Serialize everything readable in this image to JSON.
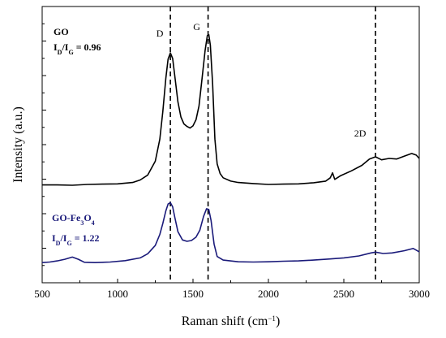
{
  "chart_data": {
    "type": "line",
    "xlabel": "Raman shift (cm",
    "xlabel_sup": "−1",
    "xlabel_end": ")",
    "ylabel": "Intensity (a.u.)",
    "xlim": [
      500,
      3000
    ],
    "ylim": [
      0,
      1
    ],
    "y_tick_labels": false,
    "x_ticks": [
      "500",
      "1000",
      "1500",
      "2000",
      "2500",
      "3000"
    ],
    "grid": false,
    "peak_lines": [
      {
        "label": "D",
        "x": 1350
      },
      {
        "label": "G",
        "x": 1600
      },
      {
        "label": "2D",
        "x": 2710
      }
    ],
    "series": [
      {
        "name": "GO",
        "ratio_label": "I",
        "ratio_sub_d": "D",
        "ratio_mid": "/I",
        "ratio_sub_g": "G",
        "ratio_value": " = 0.96",
        "color": "#000000",
        "points": [
          [
            500,
            0.354
          ],
          [
            600,
            0.354
          ],
          [
            700,
            0.353
          ],
          [
            800,
            0.356
          ],
          [
            900,
            0.357
          ],
          [
            1000,
            0.358
          ],
          [
            1100,
            0.363
          ],
          [
            1150,
            0.372
          ],
          [
            1200,
            0.39
          ],
          [
            1250,
            0.44
          ],
          [
            1280,
            0.52
          ],
          [
            1300,
            0.62
          ],
          [
            1320,
            0.74
          ],
          [
            1335,
            0.81
          ],
          [
            1350,
            0.832
          ],
          [
            1365,
            0.812
          ],
          [
            1380,
            0.745
          ],
          [
            1400,
            0.655
          ],
          [
            1420,
            0.6
          ],
          [
            1440,
            0.575
          ],
          [
            1460,
            0.566
          ],
          [
            1480,
            0.56
          ],
          [
            1500,
            0.568
          ],
          [
            1520,
            0.59
          ],
          [
            1540,
            0.64
          ],
          [
            1560,
            0.74
          ],
          [
            1580,
            0.84
          ],
          [
            1595,
            0.895
          ],
          [
            1605,
            0.898
          ],
          [
            1615,
            0.86
          ],
          [
            1630,
            0.72
          ],
          [
            1645,
            0.52
          ],
          [
            1660,
            0.43
          ],
          [
            1680,
            0.395
          ],
          [
            1700,
            0.38
          ],
          [
            1750,
            0.368
          ],
          [
            1800,
            0.363
          ],
          [
            1900,
            0.359
          ],
          [
            2000,
            0.356
          ],
          [
            2100,
            0.357
          ],
          [
            2200,
            0.358
          ],
          [
            2300,
            0.362
          ],
          [
            2380,
            0.368
          ],
          [
            2410,
            0.38
          ],
          [
            2425,
            0.398
          ],
          [
            2440,
            0.374
          ],
          [
            2480,
            0.388
          ],
          [
            2550,
            0.405
          ],
          [
            2620,
            0.425
          ],
          [
            2670,
            0.448
          ],
          [
            2710,
            0.456
          ],
          [
            2750,
            0.445
          ],
          [
            2800,
            0.45
          ],
          [
            2850,
            0.448
          ],
          [
            2900,
            0.458
          ],
          [
            2950,
            0.468
          ],
          [
            2980,
            0.462
          ],
          [
            3000,
            0.45
          ]
        ]
      },
      {
        "name": "GO-Fe",
        "name_sub": "3",
        "name_end": "O",
        "name_sub2": "4",
        "ratio_label": "I",
        "ratio_sub_d": "D",
        "ratio_mid": "/I",
        "ratio_sub_g": "G",
        "ratio_value": " = 1.22",
        "color": "#1a1a7a",
        "points": [
          [
            500,
            0.073
          ],
          [
            550,
            0.075
          ],
          [
            600,
            0.079
          ],
          [
            650,
            0.085
          ],
          [
            700,
            0.093
          ],
          [
            740,
            0.085
          ],
          [
            780,
            0.074
          ],
          [
            850,
            0.073
          ],
          [
            950,
            0.075
          ],
          [
            1050,
            0.08
          ],
          [
            1150,
            0.09
          ],
          [
            1200,
            0.105
          ],
          [
            1250,
            0.135
          ],
          [
            1280,
            0.175
          ],
          [
            1300,
            0.215
          ],
          [
            1320,
            0.26
          ],
          [
            1335,
            0.285
          ],
          [
            1350,
            0.29
          ],
          [
            1365,
            0.275
          ],
          [
            1380,
            0.235
          ],
          [
            1400,
            0.185
          ],
          [
            1430,
            0.155
          ],
          [
            1460,
            0.15
          ],
          [
            1490,
            0.153
          ],
          [
            1520,
            0.165
          ],
          [
            1545,
            0.19
          ],
          [
            1570,
            0.24
          ],
          [
            1590,
            0.268
          ],
          [
            1605,
            0.265
          ],
          [
            1620,
            0.225
          ],
          [
            1640,
            0.14
          ],
          [
            1660,
            0.095
          ],
          [
            1700,
            0.082
          ],
          [
            1800,
            0.076
          ],
          [
            1900,
            0.075
          ],
          [
            2000,
            0.076
          ],
          [
            2100,
            0.078
          ],
          [
            2200,
            0.079
          ],
          [
            2300,
            0.082
          ],
          [
            2400,
            0.086
          ],
          [
            2500,
            0.09
          ],
          [
            2600,
            0.097
          ],
          [
            2680,
            0.108
          ],
          [
            2710,
            0.111
          ],
          [
            2760,
            0.106
          ],
          [
            2820,
            0.108
          ],
          [
            2900,
            0.116
          ],
          [
            2960,
            0.124
          ],
          [
            3000,
            0.112
          ]
        ]
      }
    ]
  }
}
